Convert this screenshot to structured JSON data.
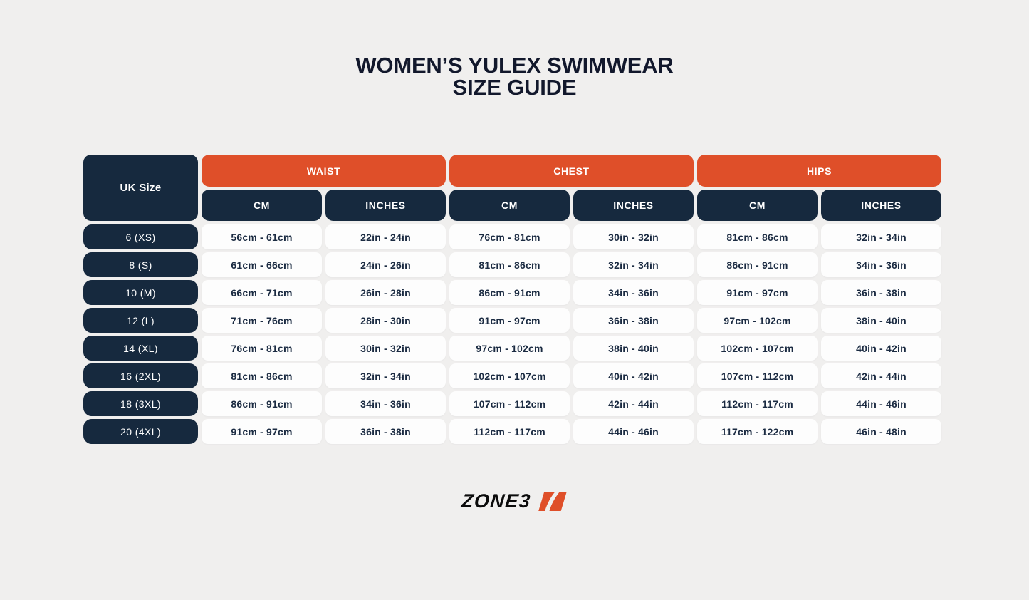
{
  "title": {
    "line1": "WOMEN’S YULEX SWIMWEAR",
    "line2": "SIZE GUIDE"
  },
  "header": {
    "uk_size_label": "UK Size",
    "groups": [
      "WAIST",
      "CHEST",
      "HIPS"
    ],
    "subcolumns": [
      "CM",
      "INCHES"
    ]
  },
  "chart_data": {
    "type": "table",
    "title": "WOMEN’S YULEX SWIMWEAR SIZE GUIDE",
    "column_groups": [
      "UK Size",
      "WAIST",
      "CHEST",
      "HIPS"
    ],
    "columns": [
      "UK Size",
      "Waist CM",
      "Waist INCHES",
      "Chest CM",
      "Chest INCHES",
      "Hips CM",
      "Hips INCHES"
    ],
    "rows": [
      [
        "6 (XS)",
        "56cm - 61cm",
        "22in - 24in",
        "76cm - 81cm",
        "30in - 32in",
        "81cm - 86cm",
        "32in - 34in"
      ],
      [
        "8 (S)",
        "61cm - 66cm",
        "24in - 26in",
        "81cm - 86cm",
        "32in - 34in",
        "86cm - 91cm",
        "34in - 36in"
      ],
      [
        "10 (M)",
        "66cm - 71cm",
        "26in - 28in",
        "86cm - 91cm",
        "34in - 36in",
        "91cm - 97cm",
        "36in - 38in"
      ],
      [
        "12 (L)",
        "71cm - 76cm",
        "28in - 30in",
        "91cm - 97cm",
        "36in - 38in",
        "97cm - 102cm",
        "38in - 40in"
      ],
      [
        "14 (XL)",
        "76cm - 81cm",
        "30in - 32in",
        "97cm - 102cm",
        "38in - 40in",
        "102cm - 107cm",
        "40in - 42in"
      ],
      [
        "16 (2XL)",
        "81cm - 86cm",
        "32in - 34in",
        "102cm - 107cm",
        "40in - 42in",
        "107cm - 112cm",
        "42in - 44in"
      ],
      [
        "18 (3XL)",
        "86cm - 91cm",
        "34in - 36in",
        "107cm - 112cm",
        "42in - 44in",
        "112cm - 117cm",
        "44in - 46in"
      ],
      [
        "20 (4XL)",
        "91cm - 97cm",
        "36in - 38in",
        "112cm - 117cm",
        "44in - 46in",
        "117cm - 122cm",
        "46in - 48in"
      ]
    ]
  },
  "logo": {
    "text": "ZONE3",
    "icon": "zone3-swoosh-icon"
  },
  "colors": {
    "background": "#F0EFEE",
    "orange": "#DF4F29",
    "navy": "#16293E",
    "cell_bg": "#FDFDFD",
    "title_text": "#12182C",
    "cell_text": "#1B2B42",
    "logo_black": "#0B0B0B"
  }
}
